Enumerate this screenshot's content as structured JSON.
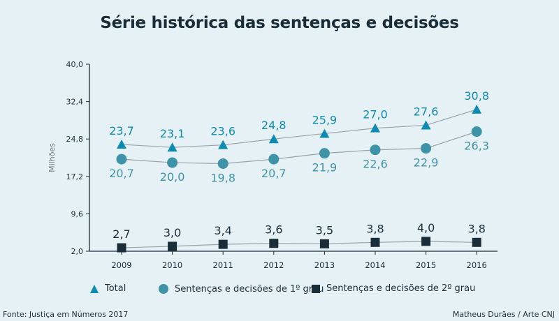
{
  "chart_data": {
    "type": "line",
    "title": "Série histórica das sentenças e decisões",
    "ylabel": "Milhões",
    "xlabel": "",
    "ylim": [
      2.0,
      40.0
    ],
    "yticks": [
      "40,0",
      "32,4",
      "24,8",
      "17,2",
      "9,6",
      "2,0"
    ],
    "ytick_values": [
      40.0,
      32.4,
      24.8,
      17.2,
      9.6,
      2.0
    ],
    "categories": [
      "2009",
      "2010",
      "2011",
      "2012",
      "2013",
      "2014",
      "2015",
      "2016"
    ],
    "series": [
      {
        "name": "Total",
        "marker": "triangle",
        "color": "#0e8bb0",
        "values": [
          23.7,
          23.1,
          23.6,
          24.8,
          25.9,
          27.0,
          27.6,
          30.8
        ],
        "labels": [
          "23,7",
          "23,1",
          "23,6",
          "24,8",
          "25,9",
          "27,0",
          "27,6",
          "30,8"
        ],
        "label_position": "above"
      },
      {
        "name": "Sentenças e decisões de 1º grau",
        "marker": "circle",
        "color": "#3e93a8",
        "values": [
          20.7,
          20.0,
          19.8,
          20.7,
          21.9,
          22.6,
          22.9,
          26.3
        ],
        "labels": [
          "20,7",
          "20,0",
          "19,8",
          "20,7",
          "21,9",
          "22,6",
          "22,9",
          "26,3"
        ],
        "label_position": "below"
      },
      {
        "name": "Sentenças e decisões de 2º grau",
        "marker": "square",
        "color": "#1a2e3a",
        "values": [
          2.7,
          3.0,
          3.4,
          3.6,
          3.5,
          3.8,
          4.0,
          3.8
        ],
        "labels": [
          "2,7",
          "3,0",
          "3,4",
          "3,6",
          "3,5",
          "3,8",
          "4,0",
          "3,8"
        ],
        "label_position": "above"
      }
    ],
    "grid": false,
    "legend_position": "bottom",
    "line_color": "#9aa3a8"
  },
  "footer": {
    "source": "Fonte: Justiça em Números 2017",
    "credit": "Matheus Durães / Arte CNJ"
  }
}
